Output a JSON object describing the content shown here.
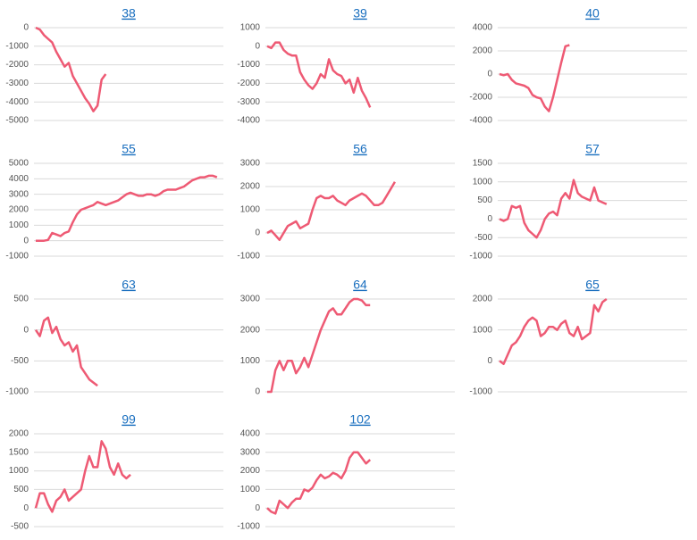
{
  "chart_data": [
    {
      "type": "line",
      "title": "38",
      "color": "#ee5a74",
      "grid": true,
      "ylim": [
        -5000,
        0
      ],
      "yticks": [
        0,
        -1000,
        -2000,
        -3000,
        -4000,
        -5000
      ],
      "values": [
        0,
        -100,
        -400,
        -600,
        -800,
        -1300,
        -1700,
        -2100,
        -1900,
        -2600,
        -3000,
        -3400,
        -3800,
        -4100,
        -4500,
        -4200,
        -2800,
        -2500
      ]
    },
    {
      "type": "line",
      "title": "39",
      "color": "#ee5a74",
      "grid": true,
      "ylim": [
        -4000,
        1000
      ],
      "yticks": [
        1000,
        0,
        -1000,
        -2000,
        -3000,
        -4000
      ],
      "values": [
        0,
        -100,
        200,
        200,
        -200,
        -400,
        -500,
        -500,
        -1400,
        -1800,
        -2100,
        -2300,
        -2000,
        -1500,
        -1700,
        -700,
        -1300,
        -1500,
        -1600,
        -2000,
        -1800,
        -2500,
        -1700,
        -2400,
        -2800,
        -3300
      ]
    },
    {
      "type": "line",
      "title": "40",
      "color": "#ee5a74",
      "grid": true,
      "ylim": [
        -4000,
        4000
      ],
      "yticks": [
        4000,
        2000,
        0,
        -2000,
        -4000
      ],
      "values": [
        0,
        -100,
        0,
        -500,
        -800,
        -900,
        -1000,
        -1200,
        -1800,
        -2000,
        -2100,
        -2800,
        -3200,
        -2000,
        -500,
        1000,
        2400,
        2500
      ]
    },
    {
      "type": "line",
      "title": "55",
      "color": "#ee5a74",
      "grid": true,
      "ylim": [
        -1000,
        5000
      ],
      "yticks": [
        5000,
        4000,
        3000,
        2000,
        1000,
        0,
        -1000
      ],
      "values": [
        0,
        0,
        0,
        50,
        500,
        400,
        300,
        500,
        600,
        1200,
        1700,
        2000,
        2100,
        2200,
        2300,
        2500,
        2400,
        2300,
        2400,
        2500,
        2600,
        2800,
        3000,
        3100,
        3000,
        2900,
        2900,
        3000,
        3000,
        2900,
        3000,
        3200,
        3300,
        3300,
        3300,
        3400,
        3500,
        3700,
        3900,
        4000,
        4100,
        4100,
        4200,
        4200,
        4100
      ]
    },
    {
      "type": "line",
      "title": "56",
      "color": "#ee5a74",
      "grid": true,
      "ylim": [
        -1000,
        3000
      ],
      "yticks": [
        3000,
        2000,
        1000,
        0,
        -1000
      ],
      "values": [
        0,
        100,
        -100,
        -300,
        0,
        300,
        400,
        500,
        200,
        300,
        400,
        1000,
        1500,
        1600,
        1500,
        1500,
        1600,
        1400,
        1300,
        1200,
        1400,
        1500,
        1600,
        1700,
        1600,
        1400,
        1200,
        1200,
        1300,
        1600,
        1900,
        2200
      ]
    },
    {
      "type": "line",
      "title": "57",
      "color": "#ee5a74",
      "grid": true,
      "ylim": [
        -1000,
        1500
      ],
      "yticks": [
        1500,
        1000,
        500,
        0,
        -500,
        -1000
      ],
      "values": [
        0,
        -50,
        0,
        350,
        300,
        350,
        -100,
        -300,
        -400,
        -500,
        -300,
        0,
        150,
        200,
        100,
        550,
        700,
        550,
        1050,
        700,
        600,
        550,
        500,
        850,
        500,
        450,
        400
      ]
    },
    {
      "type": "line",
      "title": "63",
      "color": "#ee5a74",
      "grid": true,
      "ylim": [
        -1000,
        500
      ],
      "yticks": [
        500,
        0,
        -500,
        -1000
      ],
      "values": [
        0,
        -100,
        150,
        200,
        -50,
        50,
        -150,
        -250,
        -200,
        -350,
        -250,
        -600,
        -700,
        -800,
        -850,
        -900
      ]
    },
    {
      "type": "line",
      "title": "64",
      "color": "#ee5a74",
      "grid": true,
      "ylim": [
        0,
        3000
      ],
      "yticks": [
        3000,
        2000,
        1000,
        0
      ],
      "values": [
        0,
        0,
        700,
        1000,
        700,
        1000,
        1000,
        600,
        800,
        1100,
        800,
        1200,
        1600,
        2000,
        2300,
        2600,
        2700,
        2500,
        2500,
        2700,
        2900,
        3000,
        3000,
        2950,
        2800,
        2800
      ]
    },
    {
      "type": "line",
      "title": "65",
      "color": "#ee5a74",
      "grid": true,
      "ylim": [
        -1000,
        2000
      ],
      "yticks": [
        2000,
        1000,
        0,
        -1000
      ],
      "values": [
        0,
        -100,
        200,
        500,
        600,
        800,
        1100,
        1300,
        1400,
        1300,
        800,
        900,
        1100,
        1100,
        1000,
        1200,
        1300,
        900,
        800,
        1100,
        700,
        800,
        900,
        1800,
        1600,
        1900,
        2000
      ]
    },
    {
      "type": "line",
      "title": "99",
      "color": "#ee5a74",
      "grid": true,
      "ylim": [
        -500,
        2000
      ],
      "yticks": [
        2000,
        1500,
        1000,
        500,
        0,
        -500
      ],
      "values": [
        0,
        400,
        400,
        100,
        -100,
        200,
        300,
        500,
        200,
        300,
        400,
        500,
        1000,
        1400,
        1100,
        1100,
        1800,
        1600,
        1100,
        900,
        1200,
        900,
        800,
        900
      ]
    },
    {
      "type": "line",
      "title": "102",
      "color": "#ee5a74",
      "grid": true,
      "ylim": [
        -1000,
        4000
      ],
      "yticks": [
        4000,
        3000,
        2000,
        1000,
        0,
        -1000
      ],
      "values": [
        0,
        -200,
        -300,
        400,
        200,
        0,
        300,
        500,
        500,
        1000,
        900,
        1100,
        1500,
        1800,
        1600,
        1700,
        1900,
        1800,
        1600,
        2000,
        2700,
        3000,
        3000,
        2700,
        2400,
        2600
      ]
    }
  ]
}
